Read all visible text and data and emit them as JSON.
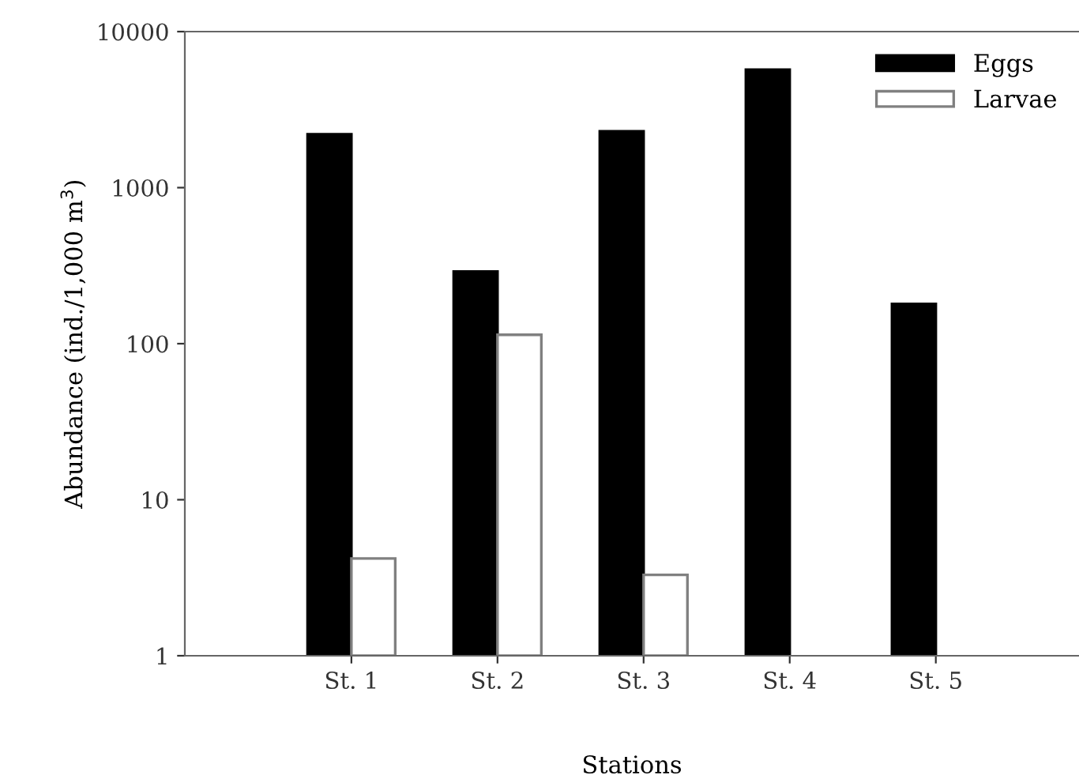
{
  "chart_data": {
    "type": "bar",
    "xlabel": "Stations",
    "ylabel": "Abundance (ind./1,000 m$^{3}$)",
    "categories": [
      "St. 1",
      "St. 2",
      "St. 3",
      "St. 4",
      "St. 5"
    ],
    "series": [
      {
        "name": "Eggs",
        "color": "#000000",
        "values": [
          2200,
          290,
          2300,
          5700,
          180
        ]
      },
      {
        "name": "Larvae",
        "color": "#ffffff",
        "values": [
          4.2,
          114,
          3.3,
          null,
          null
        ]
      }
    ],
    "log": "y",
    "ylim": [
      1,
      10000
    ],
    "yticks": [
      1,
      10,
      100,
      1000,
      10000
    ],
    "grid": false,
    "legend": "top right"
  }
}
